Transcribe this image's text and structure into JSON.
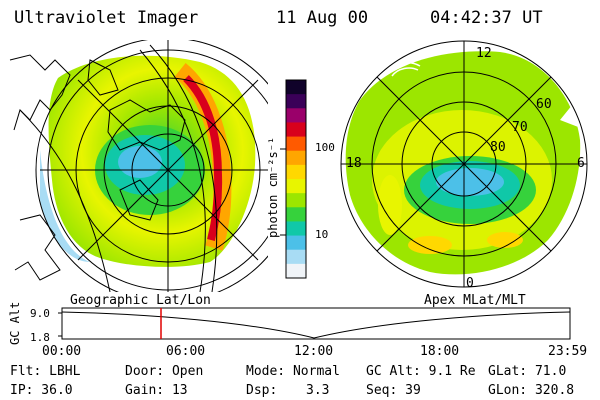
{
  "header": {
    "title": "Ultraviolet Imager",
    "date": "11 Aug 00",
    "time": "04:42:37 UT"
  },
  "left_panel": {
    "label": "Geographic Lat/Lon"
  },
  "right_panel": {
    "label": "Apex MLat/MLT",
    "mlt_labels": {
      "top": "12",
      "left": "18",
      "right": "6",
      "bottom": "0"
    },
    "lat_labels": [
      "60",
      "70",
      "80"
    ]
  },
  "colorbar": {
    "unit_label": "photon cm⁻²s⁻¹",
    "ticks": [
      "100",
      "10"
    ],
    "colors": [
      "#10022a",
      "#3a0058",
      "#9a006a",
      "#d8001c",
      "#ff5a00",
      "#ffa600",
      "#ffd800",
      "#e8f500",
      "#9ce600",
      "#36d23c",
      "#10c8a8",
      "#4cc0e8",
      "#a8dcf4",
      "#f0f4f8"
    ]
  },
  "timeline": {
    "ylabel": "GC Alt",
    "y_ticks": [
      "9.0",
      "1.8"
    ],
    "x_ticks": [
      "00:00",
      "06:00",
      "12:00",
      "18:00",
      "23:59"
    ],
    "marker_time": "04:42:37",
    "marker_color": "#e00000"
  },
  "info": {
    "row1": {
      "filter": "Flt: LBHL",
      "door": "Door: Open",
      "mode": "Mode: Normal",
      "gc_alt": "GC Alt: 9.1 Re",
      "glat": "GLat:  71.0"
    },
    "row2": {
      "ip": "IP: 36.0",
      "gain": "Gain: 13",
      "dsp_label": "Dsp:",
      "dsp_value": "3.3",
      "seq": "Seq: 39",
      "glon": "GLon: 320.8"
    }
  }
}
